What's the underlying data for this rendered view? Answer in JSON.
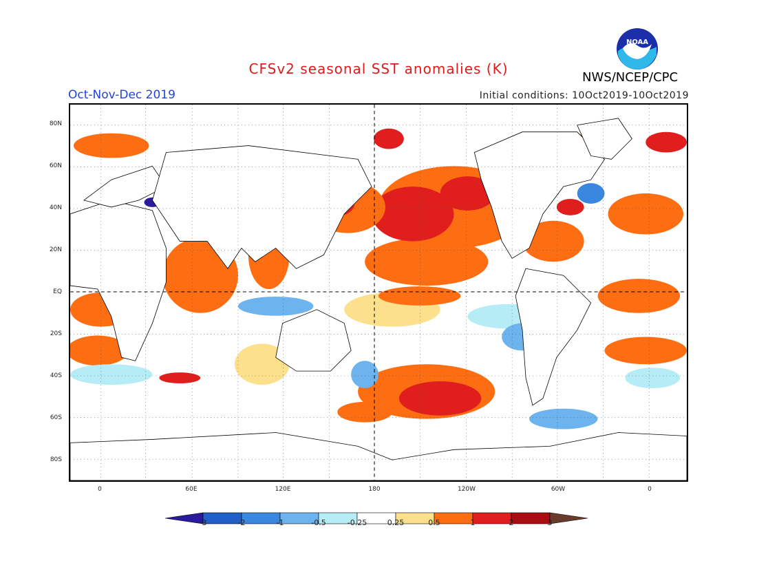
{
  "header": {
    "title": "CFSv2 seasonal SST anomalies (K)",
    "season": "Oct-Nov-Dec 2019",
    "initial_conditions": "Initial conditions: 10Oct2019-10Oct2019",
    "agency": "NWS/NCEP/CPC",
    "logo_text": "NOAA"
  },
  "axes": {
    "lat_labels": [
      "80N",
      "60N",
      "40N",
      "20N",
      "EQ",
      "20S",
      "40S",
      "60S",
      "80S"
    ],
    "lon_labels": [
      "0",
      "60E",
      "120E",
      "180",
      "120W",
      "60W",
      "0"
    ]
  },
  "colorbar": {
    "labels": [
      "-3",
      "-2",
      "-1",
      "-0.5",
      "-0.25",
      "0.25",
      "0.5",
      "1",
      "2",
      "3"
    ],
    "colors": [
      "#2a1a9e",
      "#1f5fc8",
      "#3a87e0",
      "#6db3ee",
      "#b6ecf6",
      "#ffffff",
      "#fde08c",
      "#fd6d12",
      "#e01e1e",
      "#a80d12",
      "#6b3b2e"
    ]
  },
  "colors": {
    "title": "#e0191c",
    "season": "#2443d8",
    "land": "#ffffff",
    "ocean_neutral": "#ffffff"
  }
}
